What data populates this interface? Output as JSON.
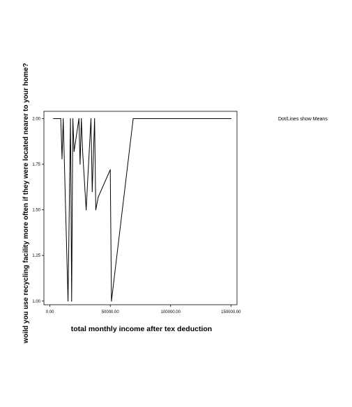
{
  "chart_data": {
    "type": "line",
    "title": "",
    "xlabel": "total monthly income after tex deduction",
    "ylabel": "woild you use recycling facility more often if they were located nearer to your home?",
    "xlim": [
      -5000,
      155000
    ],
    "ylim": [
      0.98,
      2.04
    ],
    "x_ticks": [
      0,
      50000,
      100000,
      150000
    ],
    "x_tick_labels": [
      "0.00",
      "50000.00",
      "100000.00",
      "150000.00"
    ],
    "y_ticks": [
      1.0,
      1.25,
      1.5,
      1.75,
      2.0
    ],
    "y_tick_labels": [
      "1.00",
      "1.25",
      "1.50",
      "1.75",
      "2.00"
    ],
    "grid": false,
    "legend": "none",
    "annotation": "Dot/Lines show Means",
    "series": [
      {
        "x": [
          3000,
          6000,
          9000,
          10000,
          11000,
          15000,
          17000,
          18000,
          19000,
          20000,
          24000,
          25000,
          26000,
          27000,
          30000,
          34000,
          35000,
          37000,
          38000,
          40000,
          50000,
          51000,
          69000,
          150000
        ],
        "values": [
          2.0,
          2.0,
          2.0,
          1.78,
          2.0,
          1.0,
          2.0,
          1.0,
          2.0,
          1.82,
          2.0,
          1.75,
          2.0,
          1.83,
          1.5,
          2.0,
          1.6,
          2.0,
          1.5,
          1.57,
          1.72,
          1.0,
          2.0,
          2.0
        ]
      }
    ]
  }
}
